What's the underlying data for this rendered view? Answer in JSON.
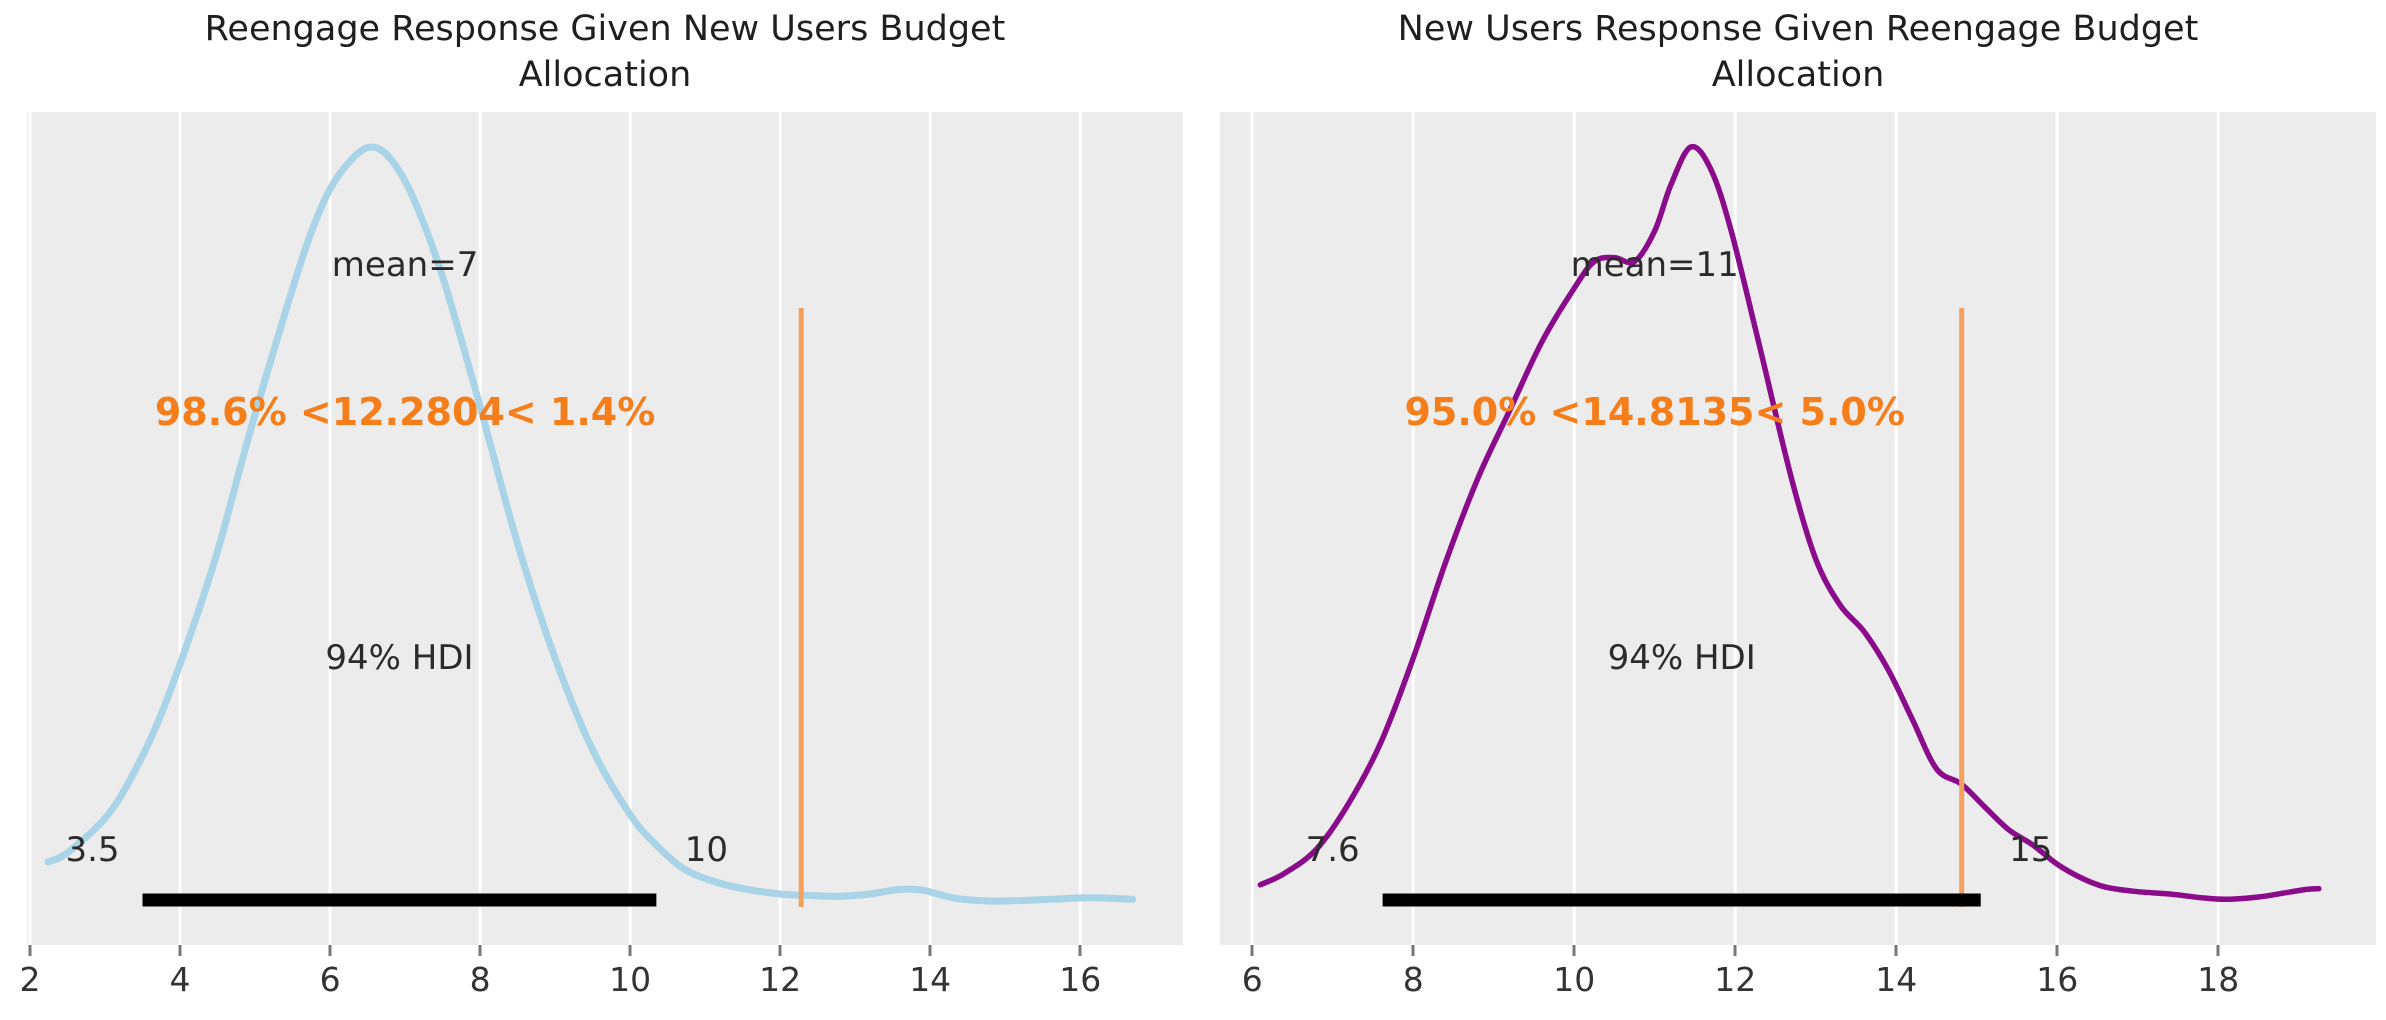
{
  "figure": {
    "background": "#ffffff",
    "panel_background": "#ececec",
    "grid_color": "#ffffff",
    "tick_color": "#777777",
    "text_color": "#2b2b2b",
    "hdi_bar_color": "#000000"
  },
  "chart_data": [
    {
      "type": "line",
      "subtype": "kde-posterior",
      "title": "Reengage Response Given New Users Budget Allocation",
      "title_lines": [
        "Reengage Response Given New Users Budget",
        "Allocation"
      ],
      "curve_color": "#a9d3e6",
      "curve_width": 7,
      "ref_line_color": "#f4a15e",
      "annotation_color": "#f57d1a",
      "xlim": [
        1.96,
        17.37
      ],
      "xticks": [
        2,
        4,
        6,
        8,
        10,
        12,
        14,
        16
      ],
      "mean": {
        "value": 7,
        "label": "mean=7"
      },
      "hdi": {
        "lo": 3.5,
        "hi": 10.35,
        "lo_label": "3.5",
        "hi_label": "10",
        "label": "94% HDI"
      },
      "ref": {
        "value": 12.2804,
        "text": "98.6% <12.2804< 1.4%"
      },
      "kde": {
        "note": "density normalized so peak = 1",
        "x": [
          2.24,
          2.5,
          3.0,
          3.33,
          3.7,
          4.1,
          4.5,
          4.9,
          5.3,
          5.7,
          6.0,
          6.3,
          6.55,
          6.8,
          7.1,
          7.5,
          8.0,
          8.5,
          9.0,
          9.5,
          10.0,
          10.35,
          10.7,
          11.1,
          11.5,
          12.0,
          12.4,
          12.8,
          13.2,
          13.6,
          13.9,
          14.3,
          14.7,
          15.1,
          15.6,
          16.1,
          16.5,
          16.7
        ],
        "density": [
          0.063,
          0.075,
          0.12,
          0.17,
          0.245,
          0.35,
          0.47,
          0.615,
          0.75,
          0.875,
          0.945,
          0.985,
          1.0,
          0.985,
          0.935,
          0.83,
          0.66,
          0.48,
          0.33,
          0.21,
          0.125,
          0.085,
          0.055,
          0.038,
          0.028,
          0.021,
          0.019,
          0.018,
          0.021,
          0.027,
          0.026,
          0.016,
          0.012,
          0.012,
          0.014,
          0.016,
          0.015,
          0.014
        ]
      }
    },
    {
      "type": "line",
      "subtype": "kde-posterior",
      "title": "New Users Response Given Reengage Budget Allocation",
      "title_lines": [
        "New Users Response Given Reengage Budget",
        "Allocation"
      ],
      "curve_color": "#8a0c8a",
      "curve_width": 5.5,
      "ref_line_color": "#f4a15e",
      "annotation_color": "#f57d1a",
      "xlim": [
        5.6,
        19.96
      ],
      "xticks": [
        6,
        8,
        10,
        12,
        14,
        16,
        18
      ],
      "mean": {
        "value": 11,
        "label": "mean=11"
      },
      "hdi": {
        "lo": 7.62,
        "hi": 15.05,
        "lo_label": "7.6",
        "hi_label": "15",
        "label": "94% HDI"
      },
      "ref": {
        "value": 14.8135,
        "text": "95.0% <14.8135< 5.0%"
      },
      "kde": {
        "note": "density normalized so peak = 1",
        "x": [
          6.1,
          6.4,
          6.8,
          7.2,
          7.6,
          8.0,
          8.4,
          8.8,
          9.2,
          9.6,
          10.0,
          10.25,
          10.5,
          10.75,
          11.0,
          11.2,
          11.45,
          11.7,
          11.95,
          12.3,
          12.7,
          13.0,
          13.3,
          13.6,
          13.9,
          14.2,
          14.5,
          14.81,
          15.1,
          15.4,
          15.7,
          16.0,
          16.3,
          16.6,
          17.0,
          17.4,
          17.8,
          18.1,
          18.5,
          18.8,
          19.1,
          19.25
        ],
        "density": [
          0.033,
          0.048,
          0.08,
          0.14,
          0.22,
          0.33,
          0.455,
          0.565,
          0.655,
          0.745,
          0.815,
          0.85,
          0.855,
          0.85,
          0.89,
          0.95,
          1.0,
          0.97,
          0.89,
          0.74,
          0.565,
          0.46,
          0.4,
          0.365,
          0.315,
          0.25,
          0.185,
          0.165,
          0.135,
          0.105,
          0.085,
          0.06,
          0.042,
          0.03,
          0.024,
          0.021,
          0.016,
          0.014,
          0.017,
          0.022,
          0.027,
          0.028
        ]
      }
    }
  ]
}
